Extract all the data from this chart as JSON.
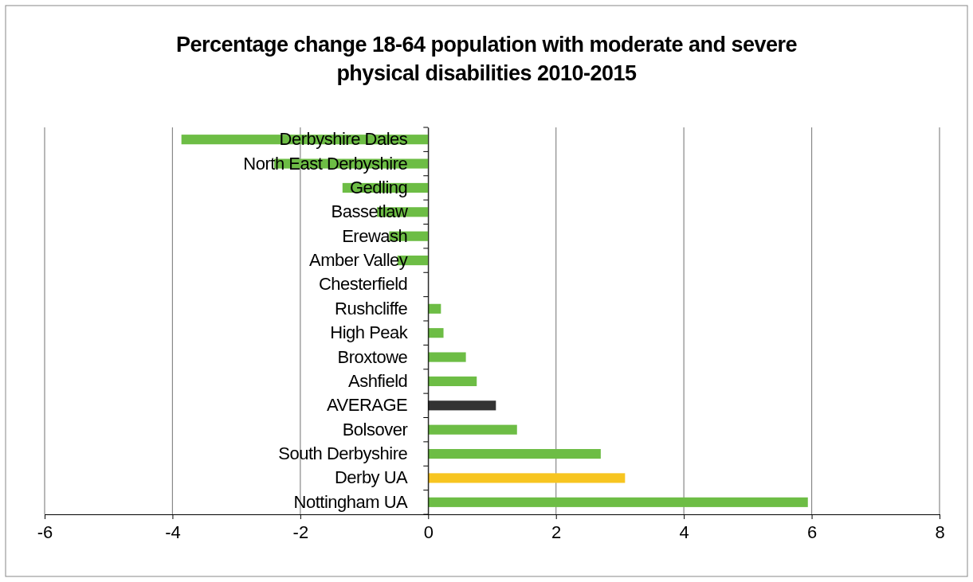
{
  "chart_data": {
    "type": "bar",
    "orientation": "horizontal",
    "title": "Percentage change 18-64 population with moderate and severe physical disabilities 2010-2015",
    "categories": [
      "Derbyshire Dales",
      "North East Derbyshire",
      "Gedling",
      "Bassetlaw",
      "Erewash",
      "Amber Valley",
      "Chesterfield",
      "Rushcliffe",
      "High Peak",
      "Broxtowe",
      "Ashfield",
      "AVERAGE",
      "Bolsover",
      "South Derbyshire",
      "Derby UA",
      "Nottingham UA"
    ],
    "values": [
      -3.86,
      -2.41,
      -1.34,
      -0.8,
      -0.61,
      -0.48,
      0,
      0.2,
      0.24,
      0.59,
      0.76,
      1.06,
      1.39,
      2.7,
      3.08,
      5.94
    ],
    "colors": [
      "#6dbd45",
      "#6dbd45",
      "#6dbd45",
      "#6dbd45",
      "#6dbd45",
      "#6dbd45",
      "#6dbd45",
      "#6dbd45",
      "#6dbd45",
      "#6dbd45",
      "#6dbd45",
      "#333333",
      "#6dbd45",
      "#6dbd45",
      "#f7c520",
      "#6dbd45"
    ],
    "xlim": [
      -6,
      8
    ],
    "xticks": [
      -6,
      -4,
      -2,
      0,
      2,
      4,
      6,
      8
    ],
    "grid": "x"
  }
}
